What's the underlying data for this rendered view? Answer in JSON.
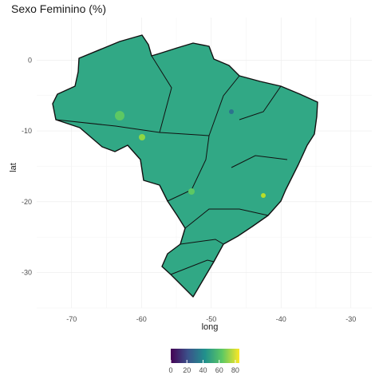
{
  "chart_data": {
    "type": "choropleth",
    "title": "Sexo Feminino (%)",
    "xlabel": "long",
    "ylabel": "lat",
    "xlim": [
      -75,
      -27
    ],
    "ylim": [
      -35,
      6
    ],
    "x_ticks": [
      "-70",
      "-60",
      "-50",
      "-40",
      "-30"
    ],
    "y_ticks": [
      "0",
      "-10",
      "-20",
      "-30"
    ],
    "grid": true,
    "legend": {
      "position": "bottom",
      "range": [
        0,
        85
      ],
      "ticks": [
        "0",
        "20",
        "40",
        "60",
        "80"
      ],
      "palette": "viridis",
      "colors": [
        "#440154",
        "#3b528b",
        "#21908c",
        "#5dc863",
        "#fde725"
      ]
    },
    "dominant_value_pct": 50,
    "dominant_color": "#31a885"
  }
}
